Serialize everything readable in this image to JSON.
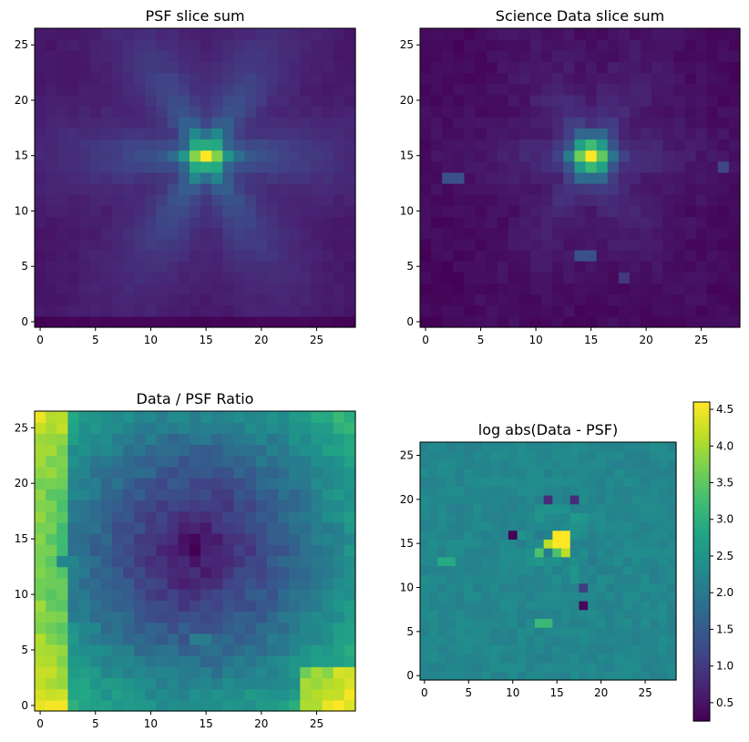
{
  "chart_data": [
    {
      "type": "heatmap",
      "title": "PSF slice sum",
      "xlabel": "",
      "ylabel": "",
      "xlim": [
        -0.5,
        28.5
      ],
      "ylim": [
        -0.5,
        26.5
      ],
      "x_ticks": [
        0,
        5,
        10,
        15,
        20,
        25
      ],
      "y_ticks": [
        0,
        5,
        10,
        15,
        20,
        25
      ],
      "grid": false,
      "colormap": "viridis",
      "shape": [
        27,
        29
      ],
      "description_of_values": "normalized 0-1 values, peak at (15,15)",
      "peak": {
        "x": 15,
        "y": 15,
        "value": 1.0
      }
    },
    {
      "type": "heatmap",
      "title": "Science Data slice sum",
      "xlabel": "",
      "ylabel": "",
      "xlim": [
        -0.5,
        28.5
      ],
      "ylim": [
        -0.5,
        26.5
      ],
      "x_ticks": [
        0,
        5,
        10,
        15,
        20,
        25
      ],
      "y_ticks": [
        0,
        5,
        10,
        15,
        20,
        25
      ],
      "grid": false,
      "colormap": "viridis",
      "shape": [
        27,
        29
      ],
      "peak": {
        "x": 15,
        "y": 15,
        "value": 1.0
      }
    },
    {
      "type": "heatmap",
      "title": "Data / PSF Ratio",
      "xlabel": "",
      "ylabel": "",
      "xlim": [
        -0.5,
        28.5
      ],
      "ylim": [
        -0.5,
        26.5
      ],
      "x_ticks": [
        0,
        5,
        10,
        15,
        20,
        25
      ],
      "y_ticks": [
        0,
        5,
        10,
        15,
        20,
        25
      ],
      "grid": false,
      "colormap": "viridis",
      "shape": [
        27,
        29
      ]
    },
    {
      "type": "heatmap",
      "title": "log abs(Data - PSF)",
      "xlabel": "",
      "ylabel": "",
      "xlim": [
        -0.5,
        28.5
      ],
      "ylim": [
        -0.5,
        26.5
      ],
      "x_ticks": [
        0,
        5,
        10,
        15,
        20,
        25
      ],
      "y_ticks": [
        0,
        5,
        10,
        15,
        20,
        25
      ],
      "grid": false,
      "colormap": "viridis",
      "shape": [
        27,
        29
      ],
      "colorbar": {
        "range": [
          0.25,
          4.6
        ],
        "ticks": [
          0.5,
          1.0,
          1.5,
          2.0,
          2.5,
          3.0,
          3.5,
          4.0,
          4.5
        ],
        "tick_labels": [
          "0.5",
          "1.0",
          "1.5",
          "2.0",
          "2.5",
          "3.0",
          "3.5",
          "4.0",
          "4.5"
        ]
      }
    }
  ]
}
